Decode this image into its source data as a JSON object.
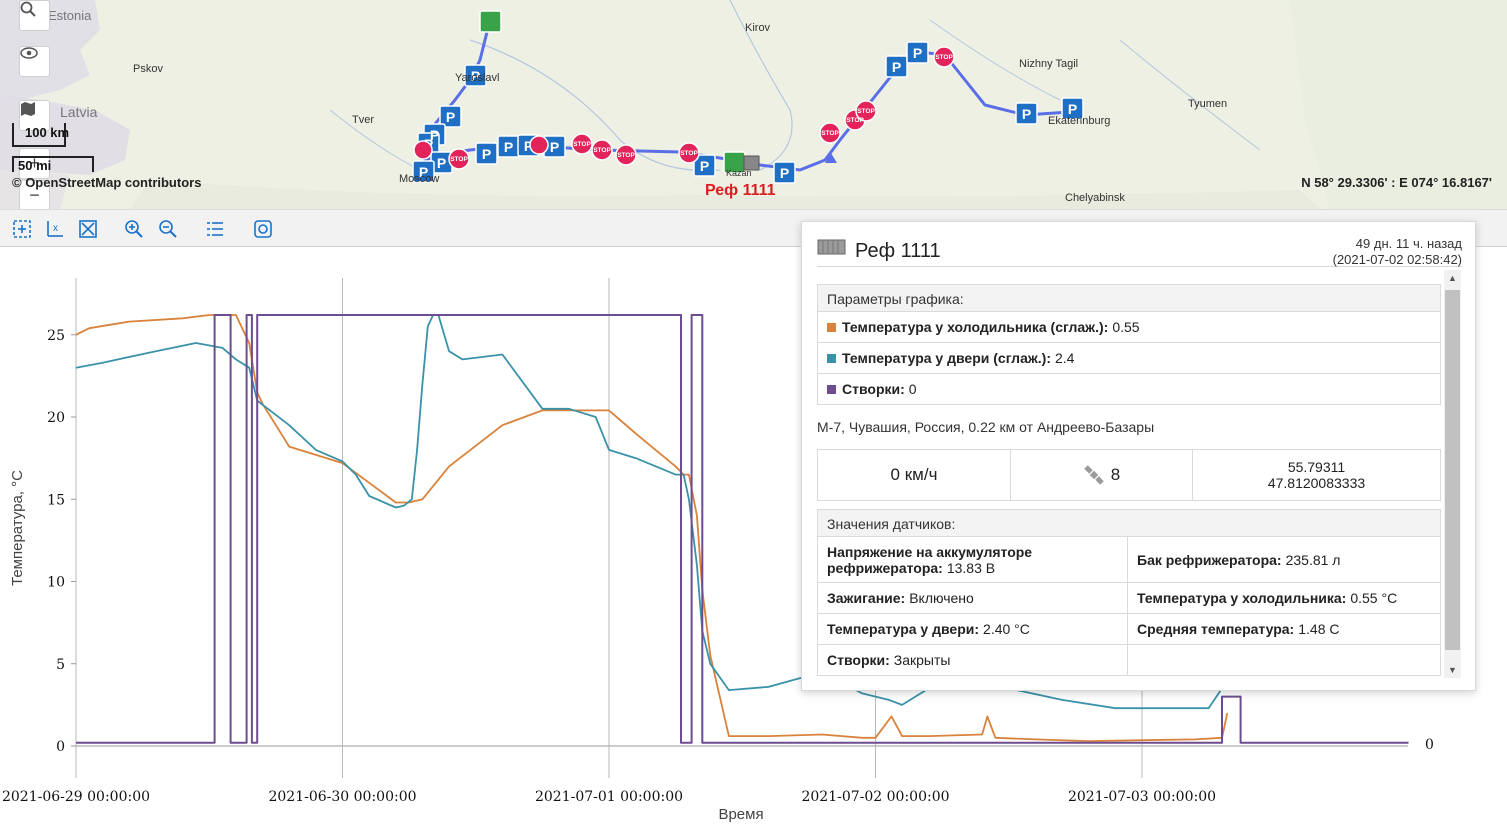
{
  "map": {
    "cities": [
      "Estonia",
      "Pskov",
      "Latvia",
      "Tver",
      "Moscow",
      "Yaroslavl",
      "Kirov",
      "Kazan",
      "Nizhny Tagil",
      "Ekaterinburg",
      "Tyumen",
      "Chelyabinsk"
    ],
    "scale_km": "100 km",
    "scale_mi": "50 mi",
    "attribution": "© OpenStreetMap contributors",
    "coordinates": "N 58° 29.3306' : E 074° 16.8167'",
    "unit_label": "Реф 1111",
    "colors": {
      "route": "#5a6ee8",
      "parking": "#1f6fc4",
      "stop": "#e3245a",
      "fuel": "#3aa34a"
    }
  },
  "toolbar": {
    "icons": [
      "select-zoom-icon",
      "zoom-x-icon",
      "fit-icon",
      "zoom-in-icon",
      "zoom-out-icon",
      "list-icon",
      "snapshot-icon"
    ]
  },
  "popup": {
    "title": "Реф 1111",
    "time_ago": "49 дн. 11 ч. назад",
    "timestamp": "(2021-07-02 02:58:42)",
    "params_header": "Параметры графика:",
    "params": [
      {
        "label": "Температура у холодильника (сглаж.):",
        "value": "0.55",
        "color": "#d9823b"
      },
      {
        "label": "Температура у двери (сглаж.):",
        "value": "2.4",
        "color": "#3a92a8"
      },
      {
        "label": "Створки:",
        "value": "0",
        "color": "#6d4c8f"
      }
    ],
    "address": "М-7, Чувашия, Россия, 0.22 км от Андреево-Базары",
    "speed": "0 км/ч",
    "satellites": "8",
    "lat": "55.79311",
    "lon": "47.8120083333",
    "sensors_header": "Значения датчиков:",
    "sensors": [
      {
        "label": "Напряжение на аккумуляторе рефрижератора:",
        "value": "13.83 В"
      },
      {
        "label": "Бак рефрижератора:",
        "value": "235.81 л"
      },
      {
        "label": "Зажигание:",
        "value": "Включено"
      },
      {
        "label": "Температура у холодильника:",
        "value": "0.55 °C"
      },
      {
        "label": "Температура у двери:",
        "value": "2.40 °C"
      },
      {
        "label": "Средняя температура:",
        "value": "1.48 C"
      },
      {
        "label": "Створки:",
        "value": "Закрыты"
      },
      {
        "label": "",
        "value": ""
      }
    ]
  },
  "chart_data": {
    "type": "line",
    "xlabel": "Время",
    "ylabel": "Температура, °C",
    "ylim": [
      0,
      27
    ],
    "yticks": [
      0,
      5,
      10,
      15,
      20,
      25
    ],
    "xticks": [
      "2021-06-29 00:00:00",
      "2021-06-30 00:00:00",
      "2021-07-01 00:00:00",
      "2021-07-02 00:00:00",
      "2021-07-03 00:00:00"
    ],
    "right_label": "0",
    "series": [
      {
        "name": "Температура у холодильника (сглаж.)",
        "color": "#d9823b",
        "x": [
          0,
          0.05,
          0.2,
          0.4,
          0.5,
          0.6,
          0.65,
          0.68,
          0.7,
          0.75,
          0.8,
          1.0,
          1.1,
          1.2,
          1.25,
          1.3,
          1.4,
          1.6,
          1.75,
          1.85,
          1.95,
          2.0,
          2.1,
          2.25,
          2.28,
          2.3,
          2.33,
          2.35,
          2.38,
          2.45,
          2.6,
          2.8,
          2.95,
          3.0,
          3.06,
          3.1,
          3.2,
          3.4,
          3.42,
          3.45,
          3.6,
          3.8,
          4.0,
          4.2,
          4.3,
          4.32
        ],
        "y": [
          25.0,
          25.4,
          25.8,
          26.0,
          26.2,
          26.2,
          24.5,
          21.5,
          20.8,
          19.5,
          18.2,
          17.2,
          16.0,
          14.8,
          14.8,
          15.0,
          17.0,
          19.5,
          20.4,
          20.4,
          20.4,
          20.4,
          19.0,
          17.0,
          16.5,
          16.5,
          14.0,
          9.5,
          5.5,
          0.6,
          0.6,
          0.7,
          0.5,
          0.5,
          1.8,
          0.6,
          0.6,
          0.7,
          1.8,
          0.5,
          0.4,
          0.3,
          0.35,
          0.4,
          0.5,
          2.0
        ]
      },
      {
        "name": "Температура у двери (сглаж.)",
        "color": "#3a92a8",
        "x": [
          0,
          0.1,
          0.3,
          0.45,
          0.55,
          0.6,
          0.65,
          0.68,
          0.72,
          0.8,
          0.9,
          1.0,
          1.05,
          1.1,
          1.2,
          1.23,
          1.26,
          1.28,
          1.3,
          1.32,
          1.34,
          1.36,
          1.4,
          1.45,
          1.6,
          1.75,
          1.85,
          1.95,
          2.0,
          2.1,
          2.25,
          2.28,
          2.3,
          2.33,
          2.35,
          2.38,
          2.45,
          2.6,
          2.8,
          2.95,
          3.05,
          3.1,
          3.2,
          3.4,
          3.5,
          3.7,
          3.9,
          4.1,
          4.25,
          4.3
        ],
        "y": [
          23.0,
          23.3,
          24.0,
          24.5,
          24.2,
          23.5,
          23.0,
          21.0,
          20.5,
          19.5,
          18.0,
          17.3,
          16.5,
          15.2,
          14.5,
          14.6,
          15.0,
          18.0,
          22.0,
          25.5,
          26.2,
          26.2,
          24.0,
          23.5,
          23.8,
          20.5,
          20.5,
          20.0,
          18.0,
          17.5,
          16.5,
          16.5,
          15.0,
          11.0,
          7.0,
          5.0,
          3.4,
          3.6,
          4.5,
          3.2,
          2.8,
          2.5,
          3.5,
          4.0,
          3.5,
          2.8,
          2.3,
          2.3,
          2.3,
          3.5
        ]
      },
      {
        "name": "Створки",
        "color": "#6d4c8f",
        "x": [
          0,
          0.52,
          0.52,
          0.58,
          0.58,
          0.64,
          0.64,
          0.66,
          0.66,
          0.68,
          0.68,
          0.72,
          0.72,
          2.27,
          2.27,
          2.31,
          2.31,
          2.35,
          2.35,
          4.3,
          4.3,
          4.37,
          4.37,
          5.0
        ],
        "y": [
          0.2,
          0.2,
          26.2,
          26.2,
          0.2,
          0.2,
          26.2,
          26.2,
          0.2,
          0.2,
          26.2,
          26.2,
          26.2,
          26.2,
          0.2,
          0.2,
          26.2,
          26.2,
          0.2,
          0.2,
          3.0,
          3.0,
          0.2,
          0.2
        ]
      }
    ]
  }
}
